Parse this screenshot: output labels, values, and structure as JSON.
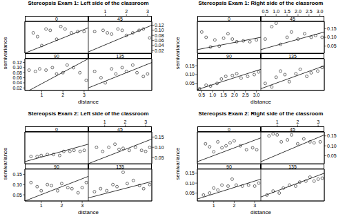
{
  "chart_data": [
    {
      "type": "scatter",
      "title": "Stereopsis Exam 1: Left side of the classroom",
      "x_label": "distance",
      "y_label": "semivariance",
      "marker": "circle",
      "xlim": [
        0.2,
        3.2
      ],
      "ylim": [
        0.01,
        0.135
      ],
      "xticks": [
        1,
        2,
        3
      ],
      "yticks": [
        0.02,
        0.04,
        0.06,
        0.08,
        {
          "value": 0.1,
          "label": "0.10"
        },
        0.12
      ],
      "panels": [
        {
          "label": "0",
          "x": [
            0.6,
            0.8,
            1.0,
            1.2,
            1.4,
            1.7,
            1.9,
            2.1,
            2.4,
            2.7,
            3.0
          ],
          "values": [
            0.09,
            0.075,
            0.04,
            0.105,
            0.1,
            0.065,
            0.115,
            0.105,
            0.09,
            0.095,
            0.095
          ],
          "fit": {
            "x": [
              0.2,
              3.2
            ],
            "values": [
              0.01,
              0.11
            ]
          }
        },
        {
          "label": "45",
          "x": [
            0.5,
            0.9,
            1.1,
            1.3,
            1.6,
            1.8,
            2.0,
            2.3,
            2.6,
            2.8,
            3.1
          ],
          "values": [
            0.095,
            0.1,
            0.09,
            0.085,
            0.105,
            0.1,
            0.08,
            0.09,
            0.1,
            0.105,
            0.07
          ],
          "fit": {
            "x": [
              0.2,
              3.2
            ],
            "values": [
              0.015,
              0.12
            ]
          }
        },
        {
          "label": "90",
          "x": [
            0.4,
            0.7,
            0.9,
            1.2,
            1.5,
            1.7,
            2.0,
            2.2,
            2.5,
            2.8,
            3.1
          ],
          "values": [
            0.09,
            0.085,
            0.095,
            0.09,
            0.1,
            0.075,
            0.08,
            0.11,
            0.1,
            0.08,
            0.05
          ],
          "fit": {
            "x": [
              0.4,
              3.2
            ],
            "values": [
              0.01,
              0.135
            ]
          }
        },
        {
          "label": "135",
          "x": [
            0.5,
            0.8,
            1.0,
            1.3,
            1.5,
            1.8,
            2.0,
            2.3,
            2.5,
            2.8,
            3.0
          ],
          "values": [
            0.085,
            0.06,
            0.04,
            0.095,
            0.075,
            0.1,
            0.085,
            0.11,
            0.08,
            0.065,
            0.075
          ],
          "fit": {
            "x": [
              0.2,
              3.2
            ],
            "values": [
              0.02,
              0.12
            ]
          }
        }
      ]
    },
    {
      "type": "scatter",
      "title": "Stereopsis Exam 1: Right side of the classroom",
      "x_label": "distance",
      "y_label": "semivariance",
      "marker": "circle",
      "xlim": [
        0.3,
        3.2
      ],
      "ylim": [
        0.01,
        0.19
      ],
      "xticks": [
        0.5,
        {
          "value": 1,
          "label": "1.0"
        },
        1.5,
        {
          "value": 2,
          "label": "2.0"
        },
        2.5,
        {
          "value": 3,
          "label": "3.0"
        }
      ],
      "yticks": [
        0.05,
        {
          "value": 0.1,
          "label": "0.10"
        },
        0.15
      ],
      "panels": [
        {
          "label": "0",
          "x": [
            0.5,
            0.7,
            0.9,
            1.1,
            1.3,
            1.5,
            1.7,
            1.9,
            2.1,
            2.4,
            2.7,
            3.0
          ],
          "values": [
            0.13,
            0.1,
            0.045,
            0.085,
            0.05,
            0.095,
            0.12,
            0.09,
            0.075,
            0.08,
            0.075,
            0.085
          ],
          "fit": {
            "x": [
              0.3,
              3.2
            ],
            "values": [
              0.03,
              0.1
            ]
          }
        },
        {
          "label": "45",
          "x": [
            0.5,
            0.8,
            1.0,
            1.2,
            1.5,
            1.7,
            2.0,
            2.3,
            2.6,
            2.8,
            3.1
          ],
          "values": [
            0.09,
            0.16,
            0.18,
            0.06,
            0.1,
            0.13,
            0.09,
            0.12,
            0.1,
            0.11,
            0.1
          ],
          "fit": {
            "x": [
              0.3,
              3.2
            ],
            "values": [
              0.03,
              0.13
            ]
          }
        },
        {
          "label": "90",
          "x": [
            0.4,
            0.7,
            0.9,
            1.2,
            1.4,
            1.6,
            1.9,
            2.1,
            2.3,
            2.6,
            2.9,
            3.1
          ],
          "values": [
            0.02,
            0.04,
            0.035,
            0.05,
            0.075,
            0.09,
            0.095,
            0.105,
            0.08,
            0.09,
            0.1,
            0.115
          ],
          "fit": {
            "x": [
              0.3,
              3.2
            ],
            "values": [
              0.015,
              0.13
            ]
          }
        },
        {
          "label": "135",
          "x": [
            0.5,
            0.8,
            1.0,
            1.2,
            1.4,
            1.6,
            1.9,
            2.1,
            2.4,
            2.6,
            2.9,
            3.1
          ],
          "values": [
            0.05,
            0.03,
            0.085,
            0.12,
            0.1,
            0.06,
            0.105,
            0.13,
            0.09,
            0.11,
            0.12,
            0.14
          ],
          "fit": {
            "x": [
              0.3,
              3.2
            ],
            "values": [
              0.02,
              0.15
            ]
          }
        }
      ]
    },
    {
      "type": "scatter",
      "title": "Stereopsis Exam 2: Left side of the classroom",
      "x_label": "distance",
      "y_label": "semivariance",
      "marker": "circle",
      "xlim": [
        0.2,
        3.3
      ],
      "ylim": [
        0.02,
        0.175
      ],
      "xticks": [
        1,
        2,
        3
      ],
      "yticks": [
        0.05,
        {
          "value": 0.1,
          "label": "0.10"
        },
        0.15
      ],
      "panels": [
        {
          "label": "0",
          "x": [
            0.5,
            0.8,
            1.0,
            1.3,
            1.6,
            1.9,
            2.1,
            2.4,
            2.6,
            2.9,
            3.1
          ],
          "values": [
            0.055,
            0.055,
            0.06,
            0.065,
            0.065,
            0.06,
            0.08,
            0.08,
            0.085,
            0.08,
            0.085
          ],
          "fit": {
            "x": [
              0.2,
              3.3
            ],
            "values": [
              0.03,
              0.115
            ]
          }
        },
        {
          "label": "45",
          "x": [
            0.6,
            0.9,
            1.2,
            1.5,
            1.7,
            1.9,
            2.2,
            2.5,
            2.8,
            3.0,
            3.2
          ],
          "values": [
            0.1,
            0.08,
            0.1,
            0.115,
            0.09,
            0.095,
            0.085,
            0.1,
            0.085,
            0.08,
            0.1
          ],
          "fit": {
            "x": [
              0.2,
              3.3
            ],
            "values": [
              0.02,
              0.14
            ]
          }
        },
        {
          "label": "90",
          "x": [
            0.5,
            0.8,
            1.0,
            1.3,
            1.5,
            1.8,
            2.0,
            2.3,
            2.5,
            2.8,
            3.0,
            3.2
          ],
          "values": [
            0.11,
            0.09,
            0.07,
            0.1,
            0.095,
            0.07,
            0.105,
            0.085,
            0.08,
            0.06,
            0.085,
            0.11
          ],
          "fit": {
            "x": [
              0.2,
              3.3
            ],
            "values": [
              0.02,
              0.14
            ]
          }
        },
        {
          "label": "135",
          "x": [
            0.5,
            0.8,
            1.1,
            1.4,
            1.6,
            1.9,
            2.1,
            2.4,
            2.7,
            2.9,
            3.2
          ],
          "values": [
            0.065,
            0.08,
            0.07,
            0.1,
            0.09,
            0.16,
            0.105,
            0.12,
            0.095,
            0.08,
            0.1
          ],
          "fit": {
            "x": [
              0.2,
              3.3
            ],
            "values": [
              0.035,
              0.115
            ]
          }
        }
      ]
    },
    {
      "type": "scatter",
      "title": "Stereopsis Exam 2: Right side of the classroom",
      "x_label": "distance",
      "y_label": "semivariance",
      "marker": "circle",
      "xlim": [
        0.2,
        3.3
      ],
      "ylim": [
        0.01,
        0.17
      ],
      "xticks": [
        1,
        2,
        3
      ],
      "yticks": [
        0.05,
        {
          "value": 0.1,
          "label": "0.10"
        },
        0.15
      ],
      "panels": [
        {
          "label": "0",
          "x": [
            0.6,
            0.8,
            1.0,
            1.2,
            1.4,
            1.6,
            1.8,
            2.0,
            2.3,
            2.6,
            2.9,
            3.1
          ],
          "values": [
            0.11,
            0.095,
            0.07,
            0.12,
            0.09,
            0.1,
            0.115,
            0.125,
            0.1,
            0.08,
            0.09,
            0.08
          ],
          "fit": {
            "x": [
              0.2,
              3.3
            ],
            "values": [
              0.02,
              0.14
            ]
          }
        },
        {
          "label": "45",
          "x": [
            0.6,
            0.8,
            1.0,
            1.2,
            1.5,
            1.7,
            2.0,
            2.3,
            2.6,
            2.8,
            3.1
          ],
          "values": [
            0.15,
            0.16,
            0.155,
            0.12,
            0.13,
            0.155,
            0.11,
            0.135,
            0.12,
            0.115,
            0.12
          ],
          "fit": {
            "x": [
              0.2,
              3.3
            ],
            "values": [
              0.02,
              0.155
            ]
          }
        },
        {
          "label": "90",
          "x": [
            0.5,
            0.8,
            1.0,
            1.2,
            1.4,
            1.7,
            1.9,
            2.1,
            2.4,
            2.7,
            3.0,
            3.2
          ],
          "values": [
            0.04,
            0.05,
            0.075,
            0.065,
            0.09,
            0.085,
            0.12,
            0.09,
            0.085,
            0.09,
            0.085,
            0.1
          ],
          "fit": {
            "x": [
              0.2,
              3.3
            ],
            "values": [
              0.02,
              0.12
            ]
          }
        },
        {
          "label": "135",
          "x": [
            0.5,
            0.8,
            1.1,
            1.3,
            1.6,
            1.9,
            2.1,
            2.4,
            2.6,
            2.8,
            3.0,
            3.2
          ],
          "values": [
            0.04,
            0.06,
            0.05,
            0.075,
            0.09,
            0.085,
            0.105,
            0.11,
            0.13,
            0.11,
            0.12,
            0.125
          ],
          "fit": {
            "x": [
              0.2,
              3.3
            ],
            "values": [
              0.03,
              0.15
            ]
          }
        }
      ]
    }
  ]
}
